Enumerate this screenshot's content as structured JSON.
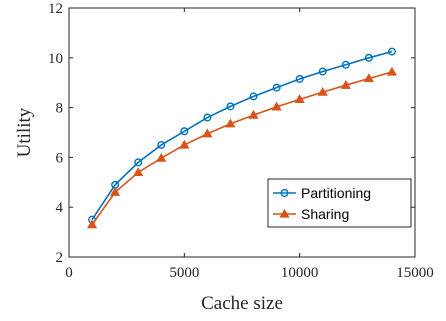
{
  "chart_data": {
    "type": "line",
    "title": "",
    "xlabel": "Cache size",
    "ylabel": "Utility",
    "xlim": [
      0,
      15000
    ],
    "ylim": [
      2,
      12
    ],
    "xticks": [
      0,
      5000,
      10000,
      15000
    ],
    "yticks": [
      2,
      4,
      6,
      8,
      10,
      12
    ],
    "grid": false,
    "legend_position": "bottom-right",
    "series": [
      {
        "name": "Partitioning",
        "color": "#0072BD",
        "marker": "circle",
        "x": [
          1000,
          2000,
          3000,
          4000,
          5000,
          6000,
          7000,
          8000,
          9000,
          10000,
          11000,
          12000,
          13000,
          14000
        ],
        "y": [
          3.5,
          4.9,
          5.8,
          6.5,
          7.05,
          7.6,
          8.05,
          8.45,
          8.8,
          9.15,
          9.45,
          9.72,
          10.0,
          10.25
        ]
      },
      {
        "name": "Sharing",
        "color": "#D95319",
        "marker": "triangle",
        "x": [
          1000,
          2000,
          3000,
          4000,
          5000,
          6000,
          7000,
          8000,
          9000,
          10000,
          11000,
          12000,
          13000,
          14000
        ],
        "y": [
          3.3,
          4.6,
          5.4,
          5.97,
          6.5,
          6.95,
          7.35,
          7.7,
          8.03,
          8.33,
          8.62,
          8.9,
          9.17,
          9.43
        ]
      }
    ]
  }
}
